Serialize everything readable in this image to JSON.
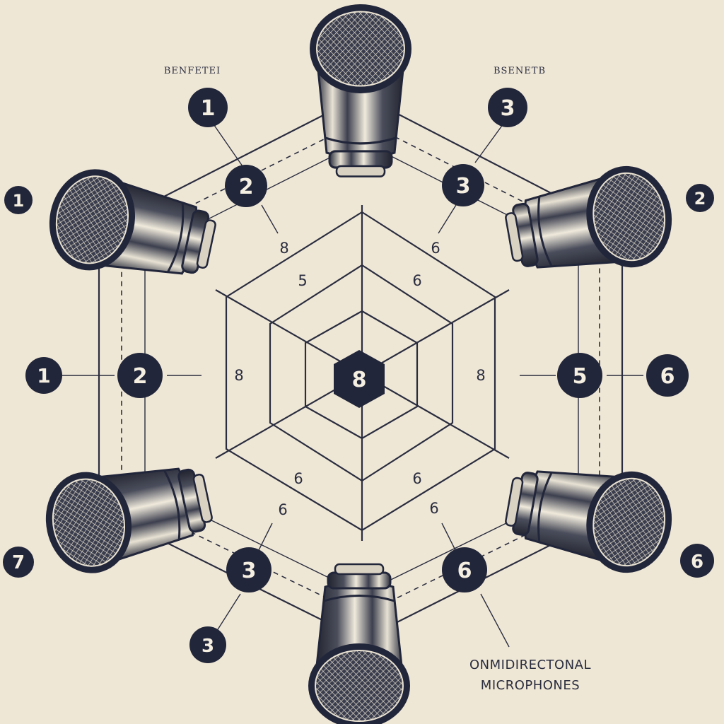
{
  "header_labels": {
    "left": "BENFETEI",
    "right": "BSENETB"
  },
  "center_label": "8",
  "badges": {
    "b_top_left_1": "1",
    "b_top_left_2": "2",
    "b_top_right_3a": "3",
    "b_top_right_3b": "3",
    "b_far_left_1": "1",
    "b_far_right_2": "2",
    "b_mid_left_1": "1",
    "b_mid_left_2": "2",
    "b_mid_right_5": "5",
    "b_mid_right_6": "6",
    "b_bot_left_7": "7",
    "b_bot_left_3a": "3",
    "b_bot_left_3b": "3",
    "b_bot_right_6a": "6",
    "b_bot_right_6b": "6"
  },
  "inner_numbers": {
    "n1": "8",
    "n2": "6",
    "n3": "5",
    "n4": "6",
    "n5": "8",
    "n6": "8",
    "n7": "6",
    "n8": "6",
    "n9": "6",
    "n10": "6"
  },
  "caption": {
    "line1": "ONMIDIRECTONAL",
    "line2": "MICROPHONES"
  },
  "colors": {
    "ink": "#22263a",
    "paper": "#efe7d6"
  }
}
